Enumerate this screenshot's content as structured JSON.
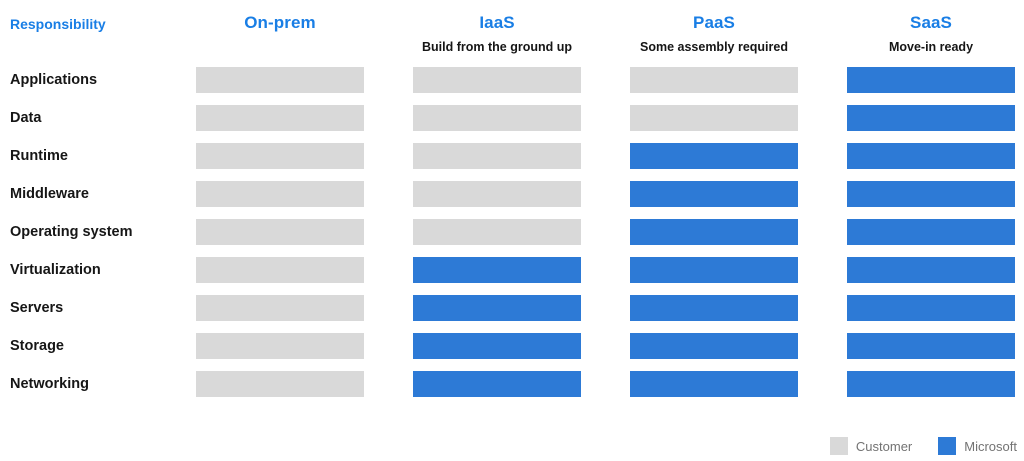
{
  "colors": {
    "header_blue": "#197EE5",
    "customer": "#D9D9D9",
    "microsoft": "#2D7AD6",
    "legend_text": "#737373",
    "label_text": "#161616"
  },
  "header": {
    "responsibility_label": "Responsibility",
    "columns": [
      {
        "label": "On-prem",
        "subtitle": ""
      },
      {
        "label": "IaaS",
        "subtitle": "Build from the ground up"
      },
      {
        "label": "PaaS",
        "subtitle": "Some assembly required"
      },
      {
        "label": "SaaS",
        "subtitle": "Move-in ready"
      }
    ]
  },
  "rows": [
    {
      "label": "Applications",
      "owners": [
        "customer",
        "customer",
        "customer",
        "microsoft"
      ]
    },
    {
      "label": "Data",
      "owners": [
        "customer",
        "customer",
        "customer",
        "microsoft"
      ]
    },
    {
      "label": "Runtime",
      "owners": [
        "customer",
        "customer",
        "microsoft",
        "microsoft"
      ]
    },
    {
      "label": "Middleware",
      "owners": [
        "customer",
        "customer",
        "microsoft",
        "microsoft"
      ]
    },
    {
      "label": "Operating system",
      "owners": [
        "customer",
        "customer",
        "microsoft",
        "microsoft"
      ]
    },
    {
      "label": "Virtualization",
      "owners": [
        "customer",
        "microsoft",
        "microsoft",
        "microsoft"
      ]
    },
    {
      "label": "Servers",
      "owners": [
        "customer",
        "microsoft",
        "microsoft",
        "microsoft"
      ]
    },
    {
      "label": "Storage",
      "owners": [
        "customer",
        "microsoft",
        "microsoft",
        "microsoft"
      ]
    },
    {
      "label": "Networking",
      "owners": [
        "customer",
        "microsoft",
        "microsoft",
        "microsoft"
      ]
    }
  ],
  "legend": {
    "items": [
      {
        "label": "Customer",
        "color": "#D9D9D9"
      },
      {
        "label": "Microsoft",
        "color": "#2D7AD6"
      }
    ]
  },
  "chart_data": {
    "type": "table",
    "title": "Responsibility",
    "columns": [
      "On-prem",
      "IaaS",
      "PaaS",
      "SaaS"
    ],
    "column_subtitles": [
      "",
      "Build from the ground up",
      "Some assembly required",
      "Move-in ready"
    ],
    "row_labels": [
      "Applications",
      "Data",
      "Runtime",
      "Middleware",
      "Operating system",
      "Virtualization",
      "Servers",
      "Storage",
      "Networking"
    ],
    "values": [
      [
        "Customer",
        "Customer",
        "Customer",
        "Microsoft"
      ],
      [
        "Customer",
        "Customer",
        "Customer",
        "Microsoft"
      ],
      [
        "Customer",
        "Customer",
        "Microsoft",
        "Microsoft"
      ],
      [
        "Customer",
        "Customer",
        "Microsoft",
        "Microsoft"
      ],
      [
        "Customer",
        "Customer",
        "Microsoft",
        "Microsoft"
      ],
      [
        "Customer",
        "Microsoft",
        "Microsoft",
        "Microsoft"
      ],
      [
        "Customer",
        "Microsoft",
        "Microsoft",
        "Microsoft"
      ],
      [
        "Customer",
        "Microsoft",
        "Microsoft",
        "Microsoft"
      ],
      [
        "Customer",
        "Microsoft",
        "Microsoft",
        "Microsoft"
      ]
    ],
    "legend": [
      "Customer",
      "Microsoft"
    ],
    "legend_position": "bottom-right"
  }
}
